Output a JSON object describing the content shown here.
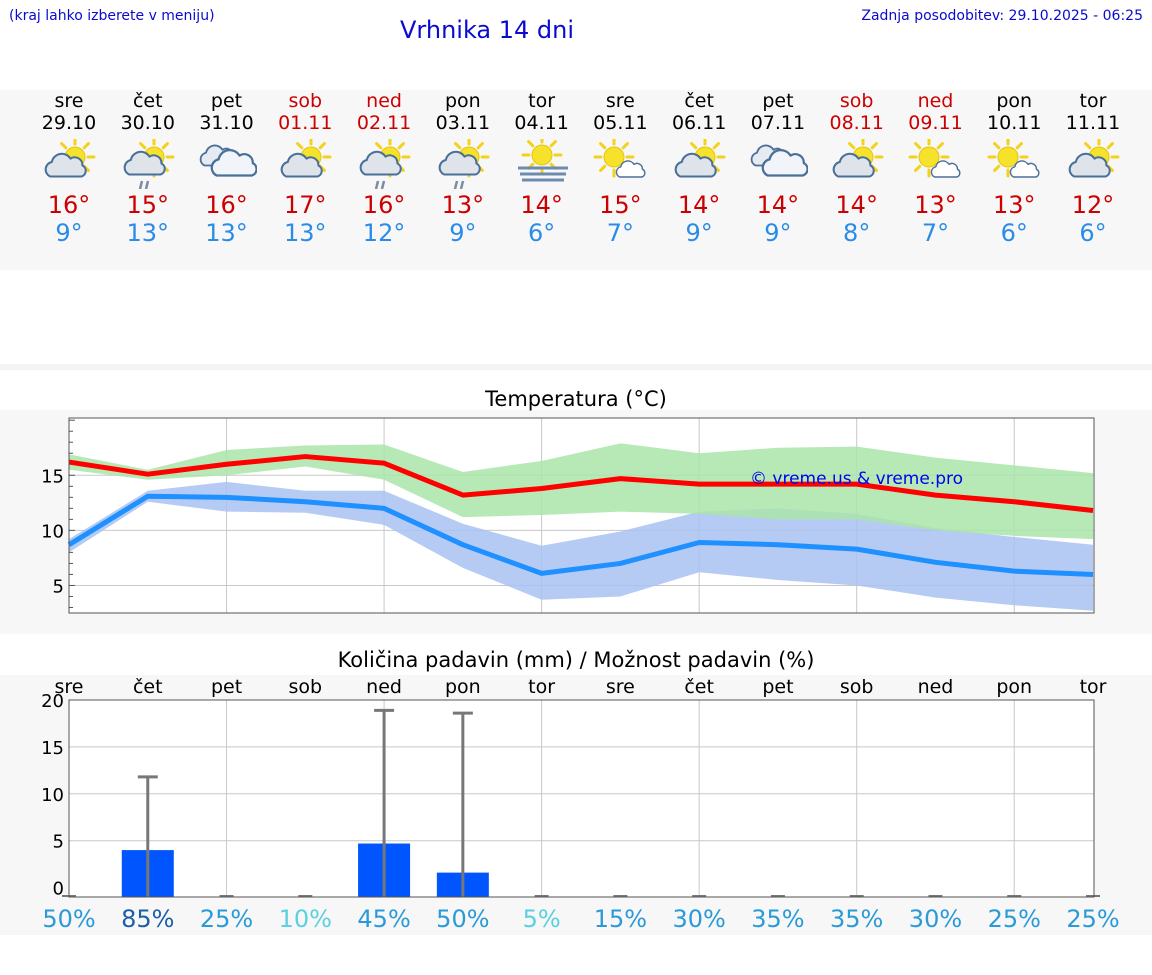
{
  "header": {
    "region_hint": "(kraj lahko izberete v meniju)",
    "title": "Vrhnika 14 dni",
    "updated": "Zadnja posodobitev: 29.10.2025 - 06:25"
  },
  "colors": {
    "title_blue": "#0a0ad0",
    "max_red": "#cc0000",
    "min_blue": "#2a8be8",
    "line_red": "#ff0000",
    "line_blue": "#1e90ff",
    "band_green": "#a9e5a9",
    "band_blue": "#a9c2f2",
    "bar_blue": "#0055ff"
  },
  "days": [
    {
      "name": "sre",
      "date": "29.10",
      "max": "16°",
      "min": "9°",
      "weekend": false,
      "icon": "sun-cloud-icon"
    },
    {
      "name": "čet",
      "date": "30.10",
      "max": "15°",
      "min": "13°",
      "weekend": false,
      "icon": "sun-cloud-rain-icon"
    },
    {
      "name": "pet",
      "date": "31.10",
      "max": "16°",
      "min": "13°",
      "weekend": false,
      "icon": "cloudy-icon"
    },
    {
      "name": "sob",
      "date": "01.11",
      "max": "17°",
      "min": "13°",
      "weekend": true,
      "icon": "sun-cloud-icon"
    },
    {
      "name": "ned",
      "date": "02.11",
      "max": "16°",
      "min": "12°",
      "weekend": true,
      "icon": "sun-cloud-rain-icon"
    },
    {
      "name": "pon",
      "date": "03.11",
      "max": "13°",
      "min": "9°",
      "weekend": false,
      "icon": "sun-cloud-rain-icon"
    },
    {
      "name": "tor",
      "date": "04.11",
      "max": "14°",
      "min": "6°",
      "weekend": false,
      "icon": "sun-fog-icon"
    },
    {
      "name": "sre",
      "date": "05.11",
      "max": "15°",
      "min": "7°",
      "weekend": false,
      "icon": "sun-small-cloud-icon"
    },
    {
      "name": "čet",
      "date": "06.11",
      "max": "14°",
      "min": "9°",
      "weekend": false,
      "icon": "sun-cloud-icon"
    },
    {
      "name": "pet",
      "date": "07.11",
      "max": "14°",
      "min": "9°",
      "weekend": false,
      "icon": "cloudy-icon"
    },
    {
      "name": "sob",
      "date": "08.11",
      "max": "14°",
      "min": "8°",
      "weekend": true,
      "icon": "sun-cloud-icon"
    },
    {
      "name": "ned",
      "date": "09.11",
      "max": "13°",
      "min": "7°",
      "weekend": true,
      "icon": "sun-small-cloud-icon"
    },
    {
      "name": "pon",
      "date": "10.11",
      "max": "13°",
      "min": "6°",
      "weekend": false,
      "icon": "sun-small-cloud-icon"
    },
    {
      "name": "tor",
      "date": "11.11",
      "max": "12°",
      "min": "6°",
      "weekend": false,
      "icon": "sun-cloud-icon"
    }
  ],
  "chart_data": [
    {
      "type": "line",
      "title": "Temperatura (°C)",
      "watermark": "© vreme.us & vreme.pro",
      "x": [
        "29.10",
        "30.10",
        "31.10",
        "01.11",
        "02.11",
        "03.11",
        "04.11",
        "05.11",
        "06.11",
        "07.11",
        "08.11",
        "09.11",
        "10.11",
        "11.11"
      ],
      "ylim": [
        2.5,
        20.2
      ],
      "yticks": [
        5,
        10,
        15
      ],
      "series": [
        {
          "name": "max",
          "values": [
            16.2,
            15.1,
            16.0,
            16.7,
            16.1,
            13.2,
            13.8,
            14.7,
            14.2,
            14.2,
            14.2,
            13.2,
            12.6,
            11.8
          ],
          "band_low": [
            15.5,
            14.6,
            15.0,
            15.8,
            14.6,
            11.2,
            11.4,
            11.7,
            11.5,
            11.0,
            11.0,
            10.0,
            9.5,
            9.2
          ],
          "band_high": [
            16.9,
            15.5,
            17.3,
            17.7,
            17.8,
            15.3,
            16.3,
            17.9,
            17.0,
            17.5,
            17.6,
            16.6,
            15.9,
            15.2
          ]
        },
        {
          "name": "min",
          "values": [
            8.7,
            13.1,
            13.0,
            12.6,
            12.0,
            8.7,
            6.1,
            7.0,
            8.9,
            8.7,
            8.3,
            7.1,
            6.3,
            6.0
          ],
          "band_low": [
            8.0,
            12.6,
            11.7,
            11.6,
            10.5,
            6.6,
            3.7,
            4.0,
            6.2,
            5.5,
            5.0,
            3.9,
            3.2,
            2.7
          ],
          "band_high": [
            9.2,
            13.6,
            14.4,
            13.6,
            13.6,
            10.6,
            8.6,
            9.9,
            11.7,
            12.0,
            11.5,
            10.2,
            9.4,
            8.7
          ]
        }
      ]
    },
    {
      "type": "bar",
      "title": "Količina padavin (mm) / Možnost padavin (%)",
      "categories": [
        "sre",
        "čet",
        "pet",
        "sob",
        "ned",
        "pon",
        "tor",
        "sre",
        "čet",
        "pet",
        "sob",
        "ned",
        "pon",
        "tor"
      ],
      "ylim": [
        -1,
        20
      ],
      "yticks": [
        0,
        5,
        10,
        15,
        20
      ],
      "values": [
        0,
        4,
        0,
        0,
        4.7,
        1.6,
        0,
        0,
        0,
        0,
        0,
        0,
        0,
        0
      ],
      "error_max": [
        0,
        11.8,
        0,
        0,
        18.9,
        18.6,
        0,
        0,
        0,
        0,
        0,
        0,
        0,
        0
      ],
      "probability": [
        "50%",
        "85%",
        "25%",
        "10%",
        "45%",
        "50%",
        "5%",
        "15%",
        "30%",
        "35%",
        "35%",
        "30%",
        "25%",
        "25%"
      ],
      "probability_values": [
        50,
        85,
        25,
        10,
        45,
        50,
        5,
        15,
        30,
        35,
        35,
        30,
        25,
        25
      ]
    }
  ]
}
